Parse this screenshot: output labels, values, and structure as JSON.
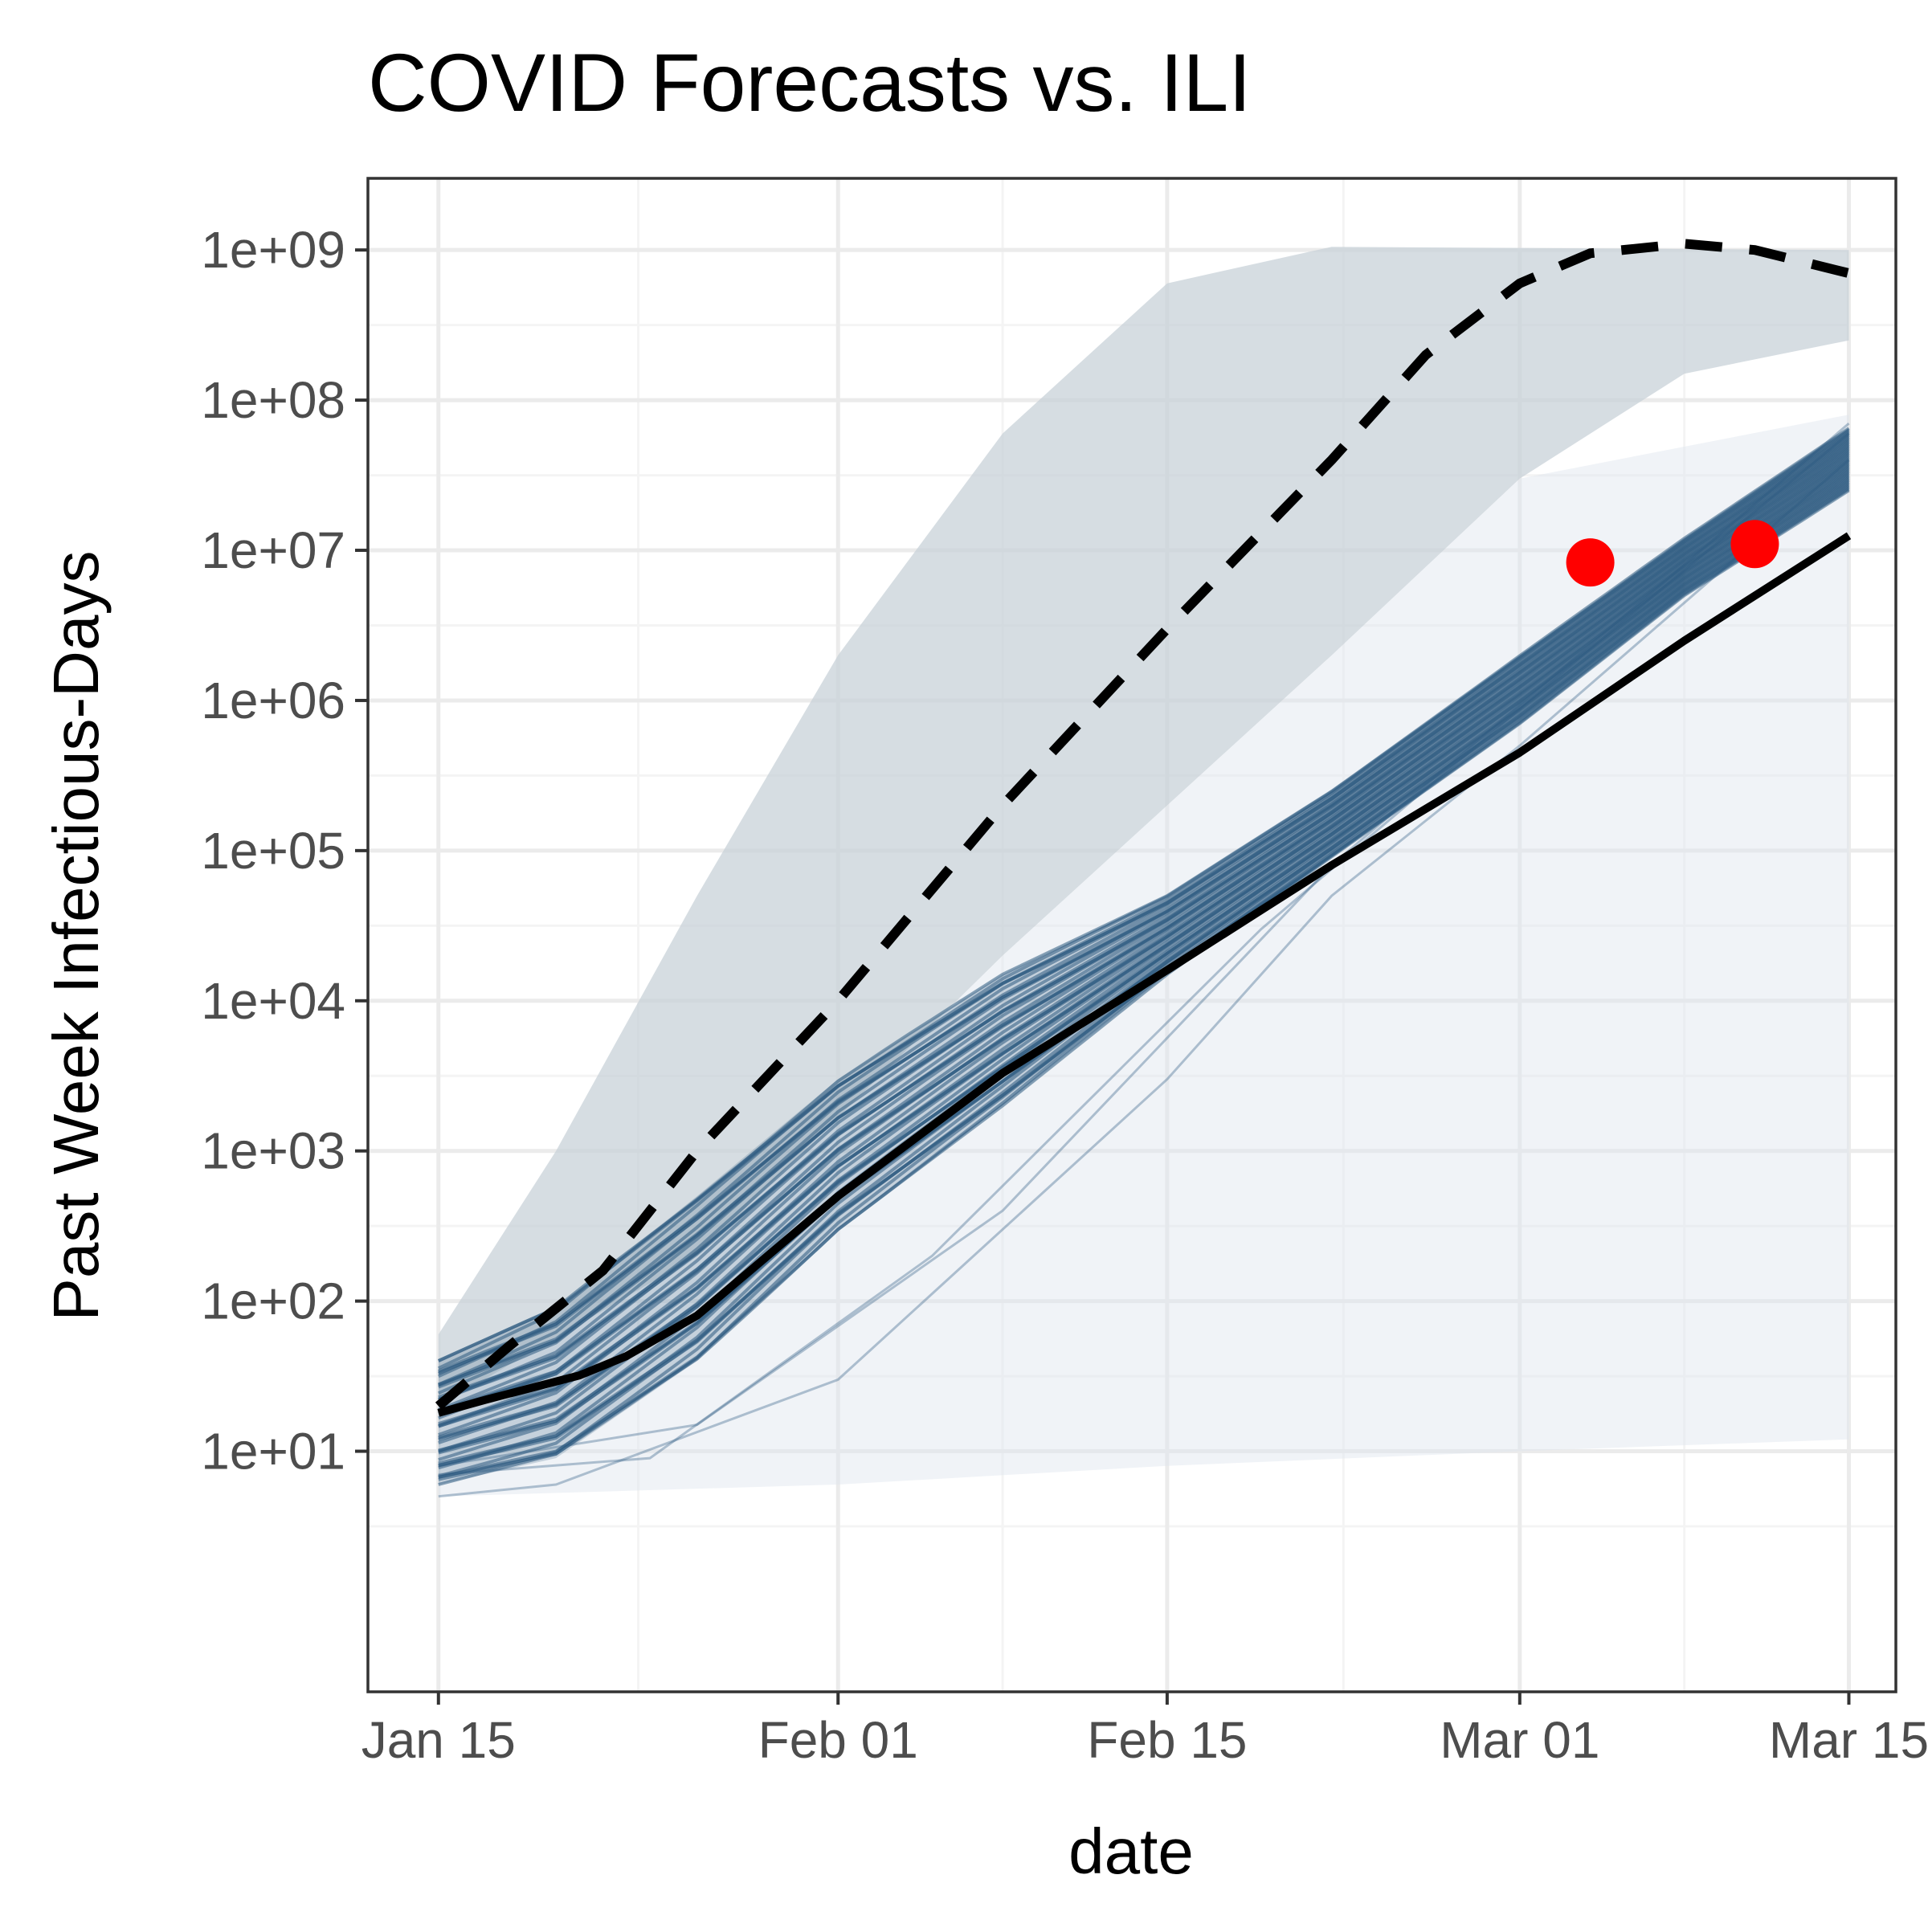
{
  "chart_data": {
    "type": "line",
    "title": "COVID Forecasts vs. ILI",
    "xlabel": "date",
    "ylabel": "Past Week Infectious-Days",
    "y_scale": "log10",
    "ylim": [
      0.25,
      3000000000
    ],
    "xlim": [
      "2020-01-12",
      "2020-03-17"
    ],
    "x_ticks": [
      {
        "date": "2020-01-15",
        "label": "Jan 15"
      },
      {
        "date": "2020-02-01",
        "label": "Feb 01"
      },
      {
        "date": "2020-02-15",
        "label": "Feb 15"
      },
      {
        "date": "2020-03-01",
        "label": "Mar 01"
      },
      {
        "date": "2020-03-15",
        "label": "Mar 15"
      }
    ],
    "y_ticks": [
      {
        "value": 10,
        "label": "1e+01"
      },
      {
        "value": 100,
        "label": "1e+02"
      },
      {
        "value": 1000,
        "label": "1e+03"
      },
      {
        "value": 10000,
        "label": "1e+04"
      },
      {
        "value": 100000,
        "label": "1e+05"
      },
      {
        "value": 1000000,
        "label": "1e+06"
      },
      {
        "value": 10000000,
        "label": "1e+07"
      },
      {
        "value": 100000000,
        "label": "1e+08"
      },
      {
        "value": 1000000000,
        "label": "1e+09"
      }
    ],
    "grid": true,
    "legend": "none",
    "colors": {
      "simulation": "#2c5a80",
      "wide_band": "#c8d2d8",
      "low_band": "#dde5ee",
      "median": "#000000",
      "upper_quantile": "#000000",
      "observed": "#ff0000",
      "panel_border": "#333333",
      "grid_major": "#ebebeb",
      "grid_minor": "#f4f4f4"
    },
    "series": [
      {
        "style": "solid",
        "points": [
          {
            "x": "2020-01-15",
            "y": 18
          },
          {
            "x": "2020-01-17",
            "y": 22
          },
          {
            "x": "2020-01-21",
            "y": 32
          },
          {
            "x": "2020-01-23",
            "y": 43
          },
          {
            "x": "2020-01-26",
            "y": 80
          },
          {
            "x": "2020-02-01",
            "y": 500
          },
          {
            "x": "2020-02-08",
            "y": 3300
          },
          {
            "x": "2020-02-15",
            "y": 16000
          },
          {
            "x": "2020-02-22",
            "y": 80000
          },
          {
            "x": "2020-03-01",
            "y": 450000
          },
          {
            "x": "2020-03-08",
            "y": 2500000
          },
          {
            "x": "2020-03-15",
            "y": 12500000
          }
        ]
      },
      {
        "style": "dashed",
        "points": [
          {
            "x": "2020-01-15",
            "y": 20
          },
          {
            "x": "2020-01-18",
            "y": 50
          },
          {
            "x": "2020-01-22",
            "y": 160
          },
          {
            "x": "2020-01-26",
            "y": 1000
          },
          {
            "x": "2020-02-01",
            "y": 10000
          },
          {
            "x": "2020-02-08",
            "y": 200000
          },
          {
            "x": "2020-02-15",
            "y": 3000000
          },
          {
            "x": "2020-02-22",
            "y": 40000000
          },
          {
            "x": "2020-02-26",
            "y": 200000000
          },
          {
            "x": "2020-03-01",
            "y": 600000000
          },
          {
            "x": "2020-03-04",
            "y": 950000000
          },
          {
            "x": "2020-03-08",
            "y": 1100000000
          },
          {
            "x": "2020-03-11",
            "y": 1000000000
          },
          {
            "x": "2020-03-15",
            "y": 700000000
          }
        ]
      },
      {
        "style": "points",
        "points": [
          {
            "x": "2020-03-04",
            "y": 8300000
          },
          {
            "x": "2020-03-11",
            "y": 11000000
          }
        ]
      }
    ],
    "bands": [
      {
        "kind": "wide_envelope",
        "upper": [
          {
            "x": "2020-01-15",
            "y": 60
          },
          {
            "x": "2020-01-20",
            "y": 1000
          },
          {
            "x": "2020-01-26",
            "y": 50000
          },
          {
            "x": "2020-02-01",
            "y": 2000000
          },
          {
            "x": "2020-02-08",
            "y": 60000000
          },
          {
            "x": "2020-02-15",
            "y": 600000000
          },
          {
            "x": "2020-02-22",
            "y": 1050000000
          },
          {
            "x": "2020-03-15",
            "y": 1000000000
          }
        ],
        "lower": [
          {
            "x": "2020-01-15",
            "y": 20
          },
          {
            "x": "2020-01-26",
            "y": 200
          },
          {
            "x": "2020-02-08",
            "y": 20000
          },
          {
            "x": "2020-02-22",
            "y": 2000000
          },
          {
            "x": "2020-03-01",
            "y": 30000000
          },
          {
            "x": "2020-03-08",
            "y": 150000000
          },
          {
            "x": "2020-03-15",
            "y": 250000000
          }
        ]
      },
      {
        "kind": "low_envelope",
        "upper": [
          {
            "x": "2020-01-15",
            "y": 20
          },
          {
            "x": "2020-01-26",
            "y": 200
          },
          {
            "x": "2020-02-08",
            "y": 20000
          },
          {
            "x": "2020-02-22",
            "y": 2000000
          },
          {
            "x": "2020-03-01",
            "y": 30000000
          },
          {
            "x": "2020-03-15",
            "y": 80000000
          }
        ],
        "lower": [
          {
            "x": "2020-01-15",
            "y": 5
          },
          {
            "x": "2020-02-01",
            "y": 6
          },
          {
            "x": "2020-02-15",
            "y": 8
          },
          {
            "x": "2020-03-01",
            "y": 10
          },
          {
            "x": "2020-03-15",
            "y": 12
          }
        ]
      },
      {
        "kind": "dense_simulations",
        "upper": [
          {
            "x": "2020-01-15",
            "y": 40
          },
          {
            "x": "2020-01-20",
            "y": 90
          },
          {
            "x": "2020-01-26",
            "y": 500
          },
          {
            "x": "2020-02-01",
            "y": 3000
          },
          {
            "x": "2020-02-08",
            "y": 15000
          },
          {
            "x": "2020-02-15",
            "y": 50000
          },
          {
            "x": "2020-02-22",
            "y": 250000
          },
          {
            "x": "2020-03-01",
            "y": 2000000
          },
          {
            "x": "2020-03-08",
            "y": 12000000
          },
          {
            "x": "2020-03-15",
            "y": 65000000
          }
        ],
        "lower": [
          {
            "x": "2020-01-15",
            "y": 6
          },
          {
            "x": "2020-01-20",
            "y": 9
          },
          {
            "x": "2020-01-26",
            "y": 40
          },
          {
            "x": "2020-02-01",
            "y": 300
          },
          {
            "x": "2020-02-08",
            "y": 2000
          },
          {
            "x": "2020-02-15",
            "y": 15000
          },
          {
            "x": "2020-02-22",
            "y": 90000
          },
          {
            "x": "2020-03-01",
            "y": 700000
          },
          {
            "x": "2020-03-08",
            "y": 5000000
          },
          {
            "x": "2020-03-15",
            "y": 25000000
          }
        ]
      }
    ],
    "outlier_simulations": [
      [
        {
          "x": "2020-01-15",
          "y": 5
        },
        {
          "x": "2020-01-20",
          "y": 6
        },
        {
          "x": "2020-02-01",
          "y": 30
        },
        {
          "x": "2020-02-08",
          "y": 300
        },
        {
          "x": "2020-02-15",
          "y": 3000
        },
        {
          "x": "2020-02-22",
          "y": 50000
        },
        {
          "x": "2020-03-01",
          "y": 500000
        },
        {
          "x": "2020-03-15",
          "y": 40000000
        }
      ],
      [
        {
          "x": "2020-01-15",
          "y": 8
        },
        {
          "x": "2020-01-26",
          "y": 15
        },
        {
          "x": "2020-02-08",
          "y": 400
        },
        {
          "x": "2020-02-22",
          "y": 80000
        },
        {
          "x": "2020-03-08",
          "y": 8000000
        },
        {
          "x": "2020-03-15",
          "y": 70000000
        }
      ],
      [
        {
          "x": "2020-01-15",
          "y": 7
        },
        {
          "x": "2020-01-24",
          "y": 9
        },
        {
          "x": "2020-02-05",
          "y": 200
        },
        {
          "x": "2020-02-19",
          "y": 30000
        },
        {
          "x": "2020-03-05",
          "y": 3000000
        },
        {
          "x": "2020-03-15",
          "y": 60000000
        }
      ]
    ]
  }
}
